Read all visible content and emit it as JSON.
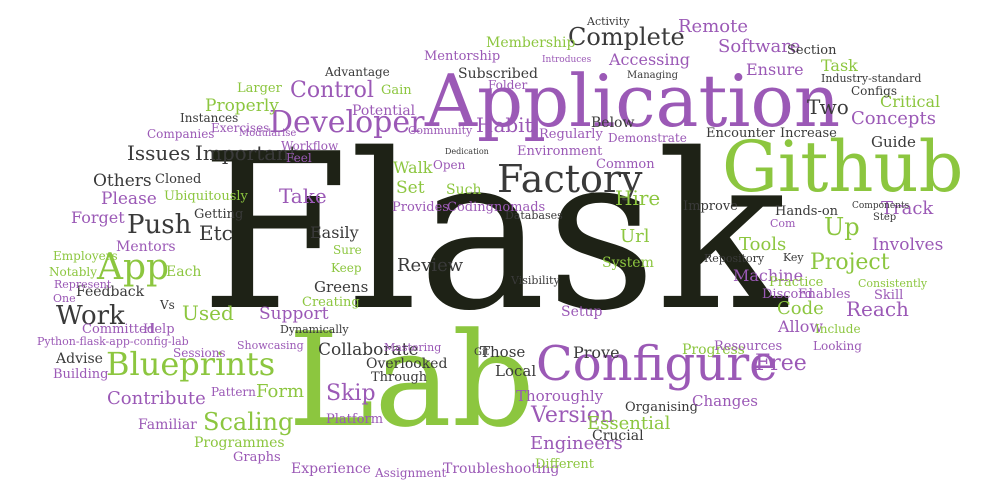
{
  "palette": {
    "dark": "#1e2216",
    "green": "#8cc63f",
    "purple": "#9b59b6",
    "gray": "#3a3a3a"
  },
  "words": [
    {
      "text": "Flask",
      "c": "dark"
    },
    {
      "text": "Lab",
      "c": "green"
    },
    {
      "text": "Application",
      "c": "purple"
    },
    {
      "text": "Github",
      "c": "green"
    },
    {
      "text": "Configure",
      "c": "purple"
    },
    {
      "text": "Factory",
      "c": "gray"
    },
    {
      "text": "Blueprints",
      "c": "green"
    },
    {
      "text": "App",
      "c": "green"
    },
    {
      "text": "Developer",
      "c": "purple"
    },
    {
      "text": "Complete",
      "c": "gray"
    },
    {
      "text": "Push",
      "c": "gray"
    },
    {
      "text": "Work",
      "c": "gray"
    },
    {
      "text": "Control",
      "c": "purple"
    },
    {
      "text": "Skip",
      "c": "purple"
    },
    {
      "text": "Scaling",
      "c": "green"
    },
    {
      "text": "Version",
      "c": "purple"
    },
    {
      "text": "Project",
      "c": "green"
    },
    {
      "text": "Reach",
      "c": "purple"
    },
    {
      "text": "Free",
      "c": "purple"
    },
    {
      "text": "Track",
      "c": "purple"
    },
    {
      "text": "Up",
      "c": "green"
    },
    {
      "text": "Etc",
      "c": "gray"
    },
    {
      "text": "Issues",
      "c": "gray"
    },
    {
      "text": "Important",
      "c": "gray"
    },
    {
      "text": "Habit",
      "c": "purple"
    },
    {
      "text": "Two",
      "c": "gray"
    },
    {
      "text": "Concepts",
      "c": "purple"
    },
    {
      "text": "Critical",
      "c": "green"
    },
    {
      "text": "Ensure",
      "c": "purple"
    },
    {
      "text": "Task",
      "c": "green"
    },
    {
      "text": "Software",
      "c": "purple"
    },
    {
      "text": "Remote",
      "c": "purple"
    },
    {
      "text": "Accessing",
      "c": "purple"
    },
    {
      "text": "Membership",
      "c": "green"
    },
    {
      "text": "Tools",
      "c": "green"
    },
    {
      "text": "Involves",
      "c": "purple"
    },
    {
      "text": "Machine",
      "c": "purple"
    },
    {
      "text": "Code",
      "c": "green"
    },
    {
      "text": "Allow",
      "c": "purple"
    },
    {
      "text": "Take",
      "c": "purple"
    },
    {
      "text": "Hire",
      "c": "green"
    },
    {
      "text": "Url",
      "c": "green"
    },
    {
      "text": "Review",
      "c": "gray"
    },
    {
      "text": "Used",
      "c": "green"
    },
    {
      "text": "Contribute",
      "c": "purple"
    },
    {
      "text": "Form",
      "c": "green"
    },
    {
      "text": "Engineers",
      "c": "purple"
    },
    {
      "text": "Essential",
      "c": "green"
    },
    {
      "text": "Collaborate",
      "c": "gray"
    },
    {
      "text": "Prove",
      "c": "gray"
    },
    {
      "text": "Others",
      "c": "gray"
    },
    {
      "text": "Please",
      "c": "purple"
    },
    {
      "text": "Forget",
      "c": "purple"
    },
    {
      "text": "Walk",
      "c": "green"
    },
    {
      "text": "Set",
      "c": "green"
    },
    {
      "text": "Easily",
      "c": "gray"
    },
    {
      "text": "Greens",
      "c": "gray"
    },
    {
      "text": "Support",
      "c": "purple"
    },
    {
      "text": "Properly",
      "c": "green"
    },
    {
      "text": "Guide",
      "c": "gray"
    },
    {
      "text": "Cloned",
      "c": "gray"
    },
    {
      "text": "Ubiquitously",
      "c": "green"
    },
    {
      "text": "Getting",
      "c": "gray"
    },
    {
      "text": "Feedback",
      "c": "gray"
    },
    {
      "text": "Each",
      "c": "green"
    },
    {
      "text": "Committed",
      "c": "purple"
    },
    {
      "text": "Help",
      "c": "purple"
    },
    {
      "text": "Advise",
      "c": "gray"
    },
    {
      "text": "Building",
      "c": "purple"
    },
    {
      "text": "Mentors",
      "c": "purple"
    },
    {
      "text": "Employers",
      "c": "green"
    },
    {
      "text": "Notably",
      "c": "green"
    },
    {
      "text": "Represent",
      "c": "purple"
    },
    {
      "text": "One",
      "c": "purple"
    },
    {
      "text": "Familiar",
      "c": "purple"
    },
    {
      "text": "Programmes",
      "c": "green"
    },
    {
      "text": "Graphs",
      "c": "purple"
    },
    {
      "text": "Experience",
      "c": "purple"
    },
    {
      "text": "Assignment",
      "c": "purple"
    },
    {
      "text": "Troubleshooting",
      "c": "purple"
    },
    {
      "text": "Different",
      "c": "green"
    },
    {
      "text": "Crucial",
      "c": "gray"
    },
    {
      "text": "Organising",
      "c": "gray"
    },
    {
      "text": "Changes",
      "c": "purple"
    },
    {
      "text": "Thoroughly",
      "c": "purple"
    },
    {
      "text": "Local",
      "c": "gray"
    },
    {
      "text": "Those",
      "c": "gray"
    },
    {
      "text": "Git",
      "c": "gray"
    },
    {
      "text": "Through",
      "c": "gray"
    },
    {
      "text": "Overlooked",
      "c": "gray"
    },
    {
      "text": "Mastering",
      "c": "purple"
    },
    {
      "text": "Platform",
      "c": "purple"
    },
    {
      "text": "Pattern",
      "c": "purple"
    },
    {
      "text": "Showcasing",
      "c": "purple"
    },
    {
      "text": "Dynamically",
      "c": "gray"
    },
    {
      "text": "Creating",
      "c": "green"
    },
    {
      "text": "Keep",
      "c": "green"
    },
    {
      "text": "Sure",
      "c": "green"
    },
    {
      "text": "Sessions",
      "c": "purple"
    },
    {
      "text": "Python-flask-app-config-lab",
      "c": "purple"
    },
    {
      "text": "Vs",
      "c": "gray"
    },
    {
      "text": "Progress",
      "c": "green"
    },
    {
      "text": "Resources",
      "c": "purple"
    },
    {
      "text": "Looking",
      "c": "purple"
    },
    {
      "text": "Include",
      "c": "green"
    },
    {
      "text": "Skill",
      "c": "purple"
    },
    {
      "text": "Enables",
      "c": "purple"
    },
    {
      "text": "Discord",
      "c": "purple"
    },
    {
      "text": "Consistently",
      "c": "green"
    },
    {
      "text": "Practice",
      "c": "green"
    },
    {
      "text": "Repository",
      "c": "gray"
    },
    {
      "text": "Key",
      "c": "gray"
    },
    {
      "text": "Hands-on",
      "c": "gray"
    },
    {
      "text": "Com",
      "c": "purple"
    },
    {
      "text": "Step",
      "c": "gray"
    },
    {
      "text": "Components",
      "c": "gray"
    },
    {
      "text": "Improve",
      "c": "gray"
    },
    {
      "text": "Encounter",
      "c": "gray"
    },
    {
      "text": "Increase",
      "c": "gray"
    },
    {
      "text": "Configs",
      "c": "gray"
    },
    {
      "text": "Industry-standard",
      "c": "gray"
    },
    {
      "text": "Section",
      "c": "gray"
    },
    {
      "text": "Managing",
      "c": "gray"
    },
    {
      "text": "Below",
      "c": "gray"
    },
    {
      "text": "Common",
      "c": "purple"
    },
    {
      "text": "Demonstrate",
      "c": "purple"
    },
    {
      "text": "Regularly",
      "c": "purple"
    },
    {
      "text": "Environment",
      "c": "purple"
    },
    {
      "text": "Open",
      "c": "purple"
    },
    {
      "text": "Such",
      "c": "green"
    },
    {
      "text": "Provides",
      "c": "purple"
    },
    {
      "text": "Codingnomads",
      "c": "purple"
    },
    {
      "text": "Databases",
      "c": "gray"
    },
    {
      "text": "System",
      "c": "green"
    },
    {
      "text": "Setup",
      "c": "purple"
    },
    {
      "text": "Visibility",
      "c": "gray"
    },
    {
      "text": "Dedication",
      "c": "gray"
    },
    {
      "text": "Subscribed",
      "c": "gray"
    },
    {
      "text": "Folder",
      "c": "purple"
    },
    {
      "text": "Introduces",
      "c": "purple"
    },
    {
      "text": "Mentorship",
      "c": "purple"
    },
    {
      "text": "Activity",
      "c": "gray"
    },
    {
      "text": "Advantage",
      "c": "gray"
    },
    {
      "text": "Gain",
      "c": "green"
    },
    {
      "text": "Potential",
      "c": "purple"
    },
    {
      "text": "Larger",
      "c": "green"
    },
    {
      "text": "Instances",
      "c": "gray"
    },
    {
      "text": "Modularise",
      "c": "purple"
    },
    {
      "text": "Workflow",
      "c": "purple"
    },
    {
      "text": "Exercises",
      "c": "purple"
    },
    {
      "text": "Companies",
      "c": "purple"
    },
    {
      "text": "Feel",
      "c": "purple"
    },
    {
      "text": "Community",
      "c": "purple"
    }
  ]
}
